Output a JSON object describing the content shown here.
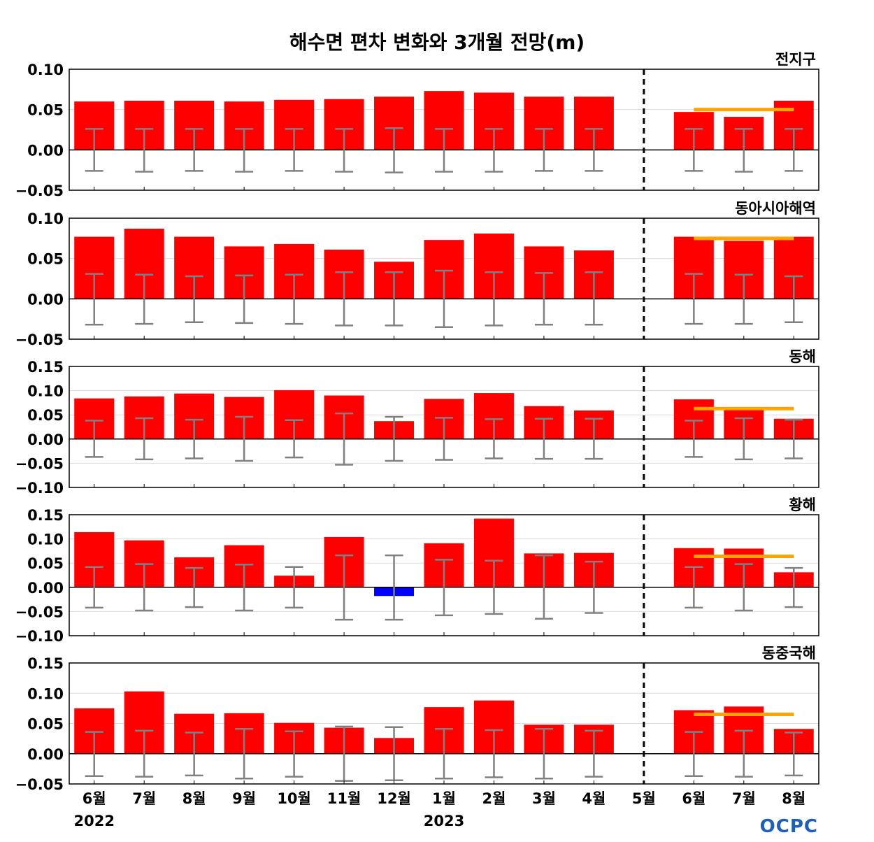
{
  "chart_data": {
    "type": "bar",
    "title": "해수면 편차 변화와 3개월 전망(m)",
    "categories": [
      "6월",
      "7월",
      "8월",
      "9월",
      "10월",
      "11월",
      "12월",
      "1월",
      "2월",
      "3월",
      "4월",
      "5월",
      "6월",
      "7월",
      "8월"
    ],
    "years": [
      {
        "label": "2022",
        "under_index": 0
      },
      {
        "label": "2023",
        "under_index": 7
      }
    ],
    "forecast_divider_index": 11,
    "colors": {
      "positive": "#ff0000",
      "negative": "#0000ff",
      "error_bar": "#808080",
      "forecast_line": "#ffa500"
    },
    "logo_text": "OCPC",
    "panels": [
      {
        "name": "전지구",
        "ylim": [
          -0.05,
          0.1
        ],
        "yticks": [
          "−0.05",
          "0.00",
          "0.05",
          "0.10"
        ],
        "ytick_values": [
          -0.05,
          0.0,
          0.05,
          0.1
        ],
        "values": [
          0.06,
          0.061,
          0.061,
          0.06,
          0.062,
          0.063,
          0.066,
          0.073,
          0.071,
          0.066,
          0.066,
          0.0,
          0.047,
          0.041,
          0.061
        ],
        "error_upper": [
          0.026,
          0.026,
          0.026,
          0.026,
          0.026,
          0.026,
          0.027,
          0.026,
          0.026,
          0.026,
          0.026,
          null,
          0.026,
          0.026,
          0.026
        ],
        "error_lower": [
          -0.026,
          -0.027,
          -0.026,
          -0.027,
          -0.026,
          -0.027,
          -0.028,
          -0.027,
          -0.027,
          -0.026,
          -0.026,
          null,
          -0.026,
          -0.027,
          -0.026
        ],
        "forecast_line": 0.05
      },
      {
        "name": "동아시아해역",
        "ylim": [
          -0.05,
          0.1
        ],
        "yticks": [
          "−0.05",
          "0.00",
          "0.05",
          "0.10"
        ],
        "ytick_values": [
          -0.05,
          0.0,
          0.05,
          0.1
        ],
        "values": [
          0.077,
          0.087,
          0.077,
          0.065,
          0.068,
          0.061,
          0.046,
          0.073,
          0.081,
          0.065,
          0.06,
          0.0,
          0.077,
          0.072,
          0.077
        ],
        "error_upper": [
          0.031,
          0.03,
          0.028,
          0.029,
          0.03,
          0.033,
          0.033,
          0.035,
          0.033,
          0.032,
          0.033,
          null,
          0.031,
          0.03,
          0.028
        ],
        "error_lower": [
          -0.032,
          -0.031,
          -0.029,
          -0.03,
          -0.031,
          -0.033,
          -0.033,
          -0.035,
          -0.033,
          -0.032,
          -0.032,
          null,
          -0.031,
          -0.031,
          -0.029
        ],
        "forecast_line": 0.075
      },
      {
        "name": "동해",
        "ylim": [
          -0.1,
          0.15
        ],
        "yticks": [
          "−0.10",
          "−0.05",
          "0.00",
          "0.05",
          "0.10",
          "0.15"
        ],
        "ytick_values": [
          -0.1,
          -0.05,
          0.0,
          0.05,
          0.1,
          0.15
        ],
        "values": [
          0.084,
          0.088,
          0.094,
          0.087,
          0.101,
          0.09,
          0.037,
          0.083,
          0.095,
          0.068,
          0.059,
          0.0,
          0.082,
          0.065,
          0.042
        ],
        "error_upper": [
          0.038,
          0.043,
          0.04,
          0.046,
          0.039,
          0.053,
          0.046,
          0.044,
          0.041,
          0.042,
          0.042,
          null,
          0.038,
          0.043,
          0.04
        ],
        "error_lower": [
          -0.037,
          -0.042,
          -0.04,
          -0.045,
          -0.038,
          -0.053,
          -0.045,
          -0.043,
          -0.04,
          -0.041,
          -0.041,
          null,
          -0.037,
          -0.042,
          -0.04
        ],
        "forecast_line": 0.063
      },
      {
        "name": "황해",
        "ylim": [
          -0.1,
          0.15
        ],
        "yticks": [
          "−0.10",
          "−0.05",
          "0.00",
          "0.05",
          "0.10",
          "0.15"
        ],
        "ytick_values": [
          -0.1,
          -0.05,
          0.0,
          0.05,
          0.1,
          0.15
        ],
        "values": [
          0.114,
          0.097,
          0.062,
          0.087,
          0.024,
          0.104,
          -0.018,
          0.091,
          0.142,
          0.07,
          0.071,
          0.0,
          0.081,
          0.08,
          0.031
        ],
        "error_upper": [
          0.042,
          0.048,
          0.04,
          0.047,
          0.042,
          0.066,
          0.066,
          0.057,
          0.055,
          0.066,
          0.053,
          null,
          0.042,
          0.048,
          0.04
        ],
        "error_lower": [
          -0.042,
          -0.048,
          -0.041,
          -0.048,
          -0.042,
          -0.067,
          -0.067,
          -0.058,
          -0.055,
          -0.065,
          -0.053,
          null,
          -0.042,
          -0.048,
          -0.041
        ],
        "forecast_line": 0.064
      },
      {
        "name": "동중국해",
        "ylim": [
          -0.05,
          0.15
        ],
        "yticks": [
          "−0.05",
          "0.00",
          "0.05",
          "0.10",
          "0.15"
        ],
        "ytick_values": [
          -0.05,
          0.0,
          0.05,
          0.1,
          0.15
        ],
        "values": [
          0.075,
          0.103,
          0.066,
          0.067,
          0.051,
          0.043,
          0.026,
          0.077,
          0.088,
          0.048,
          0.048,
          0.0,
          0.072,
          0.078,
          0.041
        ],
        "error_upper": [
          0.036,
          0.038,
          0.035,
          0.041,
          0.037,
          0.045,
          0.044,
          0.041,
          0.039,
          0.041,
          0.038,
          null,
          0.036,
          0.038,
          0.035
        ],
        "error_lower": [
          -0.037,
          -0.038,
          -0.036,
          -0.041,
          -0.038,
          -0.045,
          -0.044,
          -0.041,
          -0.039,
          -0.041,
          -0.038,
          null,
          -0.037,
          -0.038,
          -0.036
        ],
        "forecast_line": 0.065
      }
    ]
  }
}
